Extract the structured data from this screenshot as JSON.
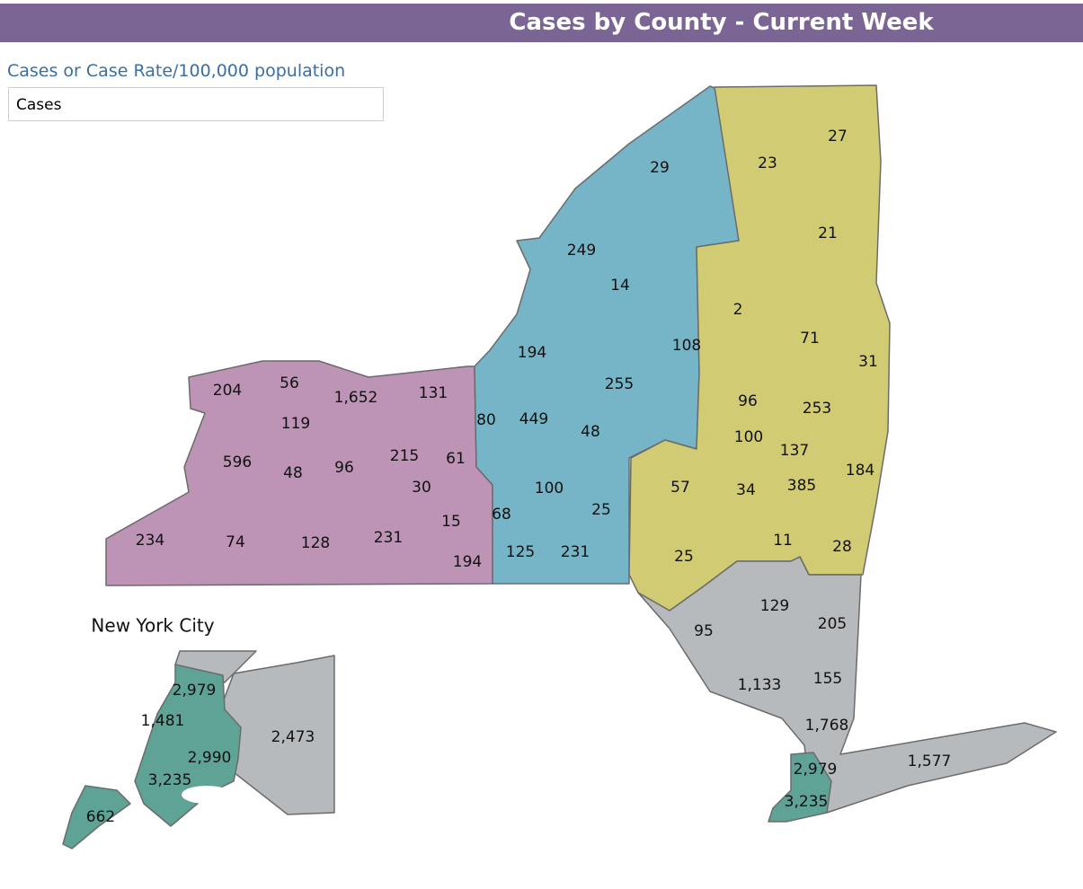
{
  "header": {
    "title": "Cases by County - Current Week"
  },
  "selector": {
    "label": "Cases or Case Rate/100,000 population",
    "value": "Cases"
  },
  "map": {
    "counties": [
      "204",
      "56",
      "1,652",
      "131",
      "119",
      "596",
      "48",
      "96",
      "215",
      "61",
      "30",
      "15",
      "234",
      "74",
      "128",
      "231",
      "194",
      "29",
      "249",
      "14",
      "194",
      "108",
      "255",
      "80",
      "449",
      "48",
      "100",
      "68",
      "25",
      "125",
      "231",
      "23",
      "27",
      "21",
      "2",
      "71",
      "31",
      "96",
      "253",
      "100",
      "137",
      "57",
      "34",
      "385",
      "184",
      "11",
      "28",
      "25",
      "129",
      "205",
      "95",
      "1,133",
      "155",
      "1,768",
      "1,577",
      "2,979",
      "3,235"
    ]
  },
  "inset": {
    "title": "New York City",
    "counties": [
      "2,979",
      "1,481",
      "2,990",
      "2,473",
      "3,235",
      "662"
    ]
  }
}
